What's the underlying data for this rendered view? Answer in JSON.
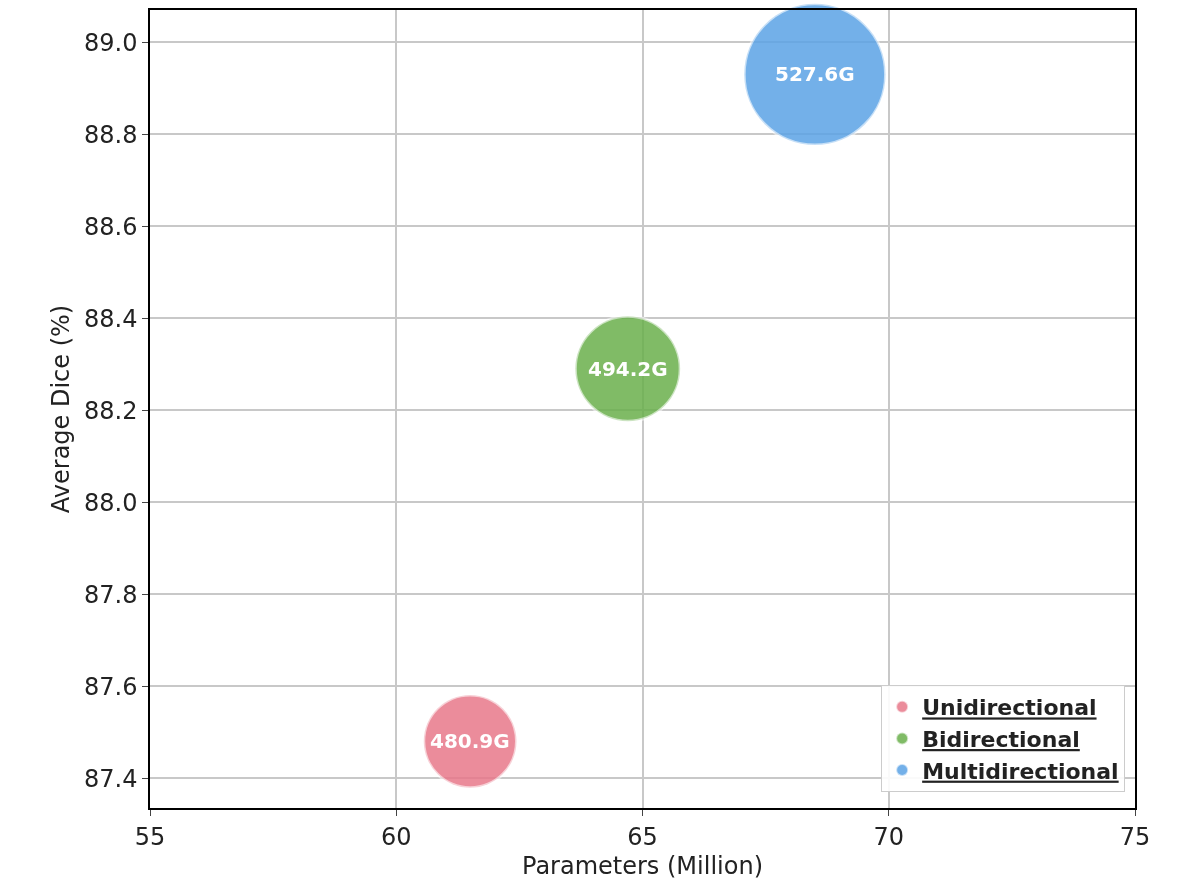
{
  "chart_data": {
    "type": "bubble",
    "xlabel": "Parameters (Million)",
    "ylabel": "Average Dice (%)",
    "xlim": [
      55,
      75
    ],
    "xticks": [
      55,
      60,
      65,
      70,
      75
    ],
    "ylim": [
      87.335,
      89.07
    ],
    "yticks": [
      87.4,
      87.6,
      87.8,
      {
        "value": 88,
        "label": "88.0"
      },
      88.2,
      88.4,
      88.6,
      88.8,
      {
        "value": 89,
        "label": "89.0"
      }
    ],
    "annotations": [
      {
        "text": "480.9G",
        "x": 61.5,
        "y": 87.48
      },
      {
        "text": "494.2G",
        "x": 64.7,
        "y": 88.29
      },
      {
        "text": "527.6G",
        "x": 68.5,
        "y": 88.93
      }
    ],
    "grid": true,
    "legend": "bottom right",
    "series": [
      {
        "name": "Unidirectional",
        "color": "#e8788a",
        "x": [
          61.5
        ],
        "values": [
          87.48
        ],
        "sizes": [
          0.43
        ]
      },
      {
        "name": "Bidirectional",
        "color": "#6ab04c",
        "x": [
          64.7
        ],
        "values": [
          88.29
        ],
        "sizes": [
          0.55
        ]
      },
      {
        "name": "Multidirectional",
        "color": "#5ba3e6",
        "x": [
          68.5
        ],
        "values": [
          88.93
        ],
        "sizes": [
          1
        ]
      }
    ]
  }
}
